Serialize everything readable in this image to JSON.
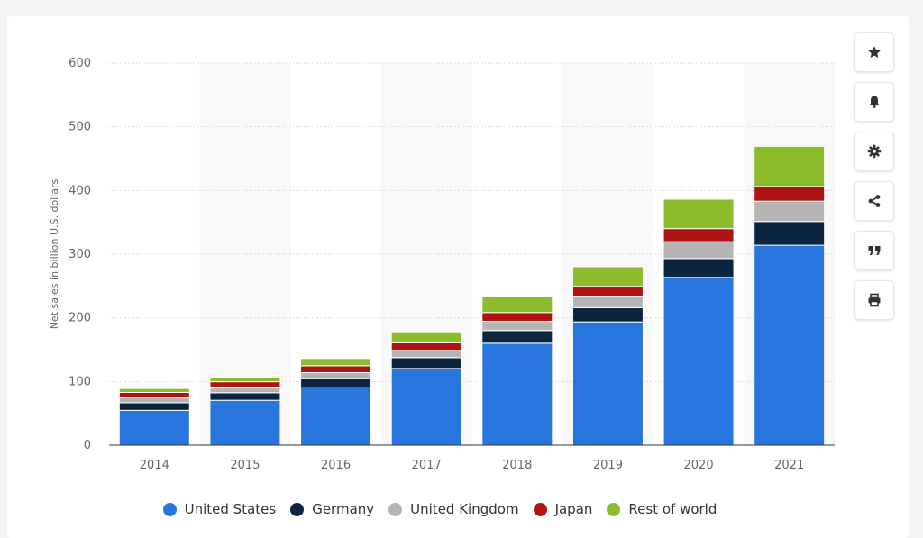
{
  "chart_data": {
    "type": "bar",
    "stacked": true,
    "categories": [
      "2014",
      "2015",
      "2016",
      "2017",
      "2018",
      "2019",
      "2020",
      "2021"
    ],
    "series": [
      {
        "name": "United States",
        "color": "#2876dd",
        "values": [
          54.7,
          70.5,
          90.3,
          120.5,
          160.1,
          193.6,
          263.5,
          314.0
        ]
      },
      {
        "name": "Germany",
        "color": "#0b2440",
        "values": [
          11.9,
          11.8,
          14.1,
          17.0,
          19.9,
          22.2,
          29.6,
          37.3
        ]
      },
      {
        "name": "United Kingdom",
        "color": "#b5b5b5",
        "values": [
          8.3,
          9.0,
          9.5,
          11.4,
          14.5,
          17.5,
          26.5,
          31.9
        ]
      },
      {
        "name": "Japan",
        "color": "#ae1414",
        "values": [
          7.9,
          8.3,
          10.8,
          11.9,
          13.8,
          16.0,
          20.5,
          23.1
        ]
      },
      {
        "name": "Rest of world",
        "color": "#8cbc2c",
        "values": [
          6.1,
          7.3,
          11.4,
          17.3,
          24.5,
          31.0,
          46.3,
          63.0
        ]
      }
    ],
    "ylabel": "Net sales in billion U.S. dollars",
    "yticks": [
      "0",
      "100",
      "200",
      "300",
      "400",
      "500",
      "600"
    ],
    "ylim": [
      0,
      600
    ],
    "grid": "horizontal dotted",
    "legend_position": "bottom"
  },
  "toolbar": {
    "icons": [
      "star-icon",
      "bell-icon",
      "gear-icon",
      "share-icon",
      "quote-icon",
      "print-icon"
    ]
  }
}
